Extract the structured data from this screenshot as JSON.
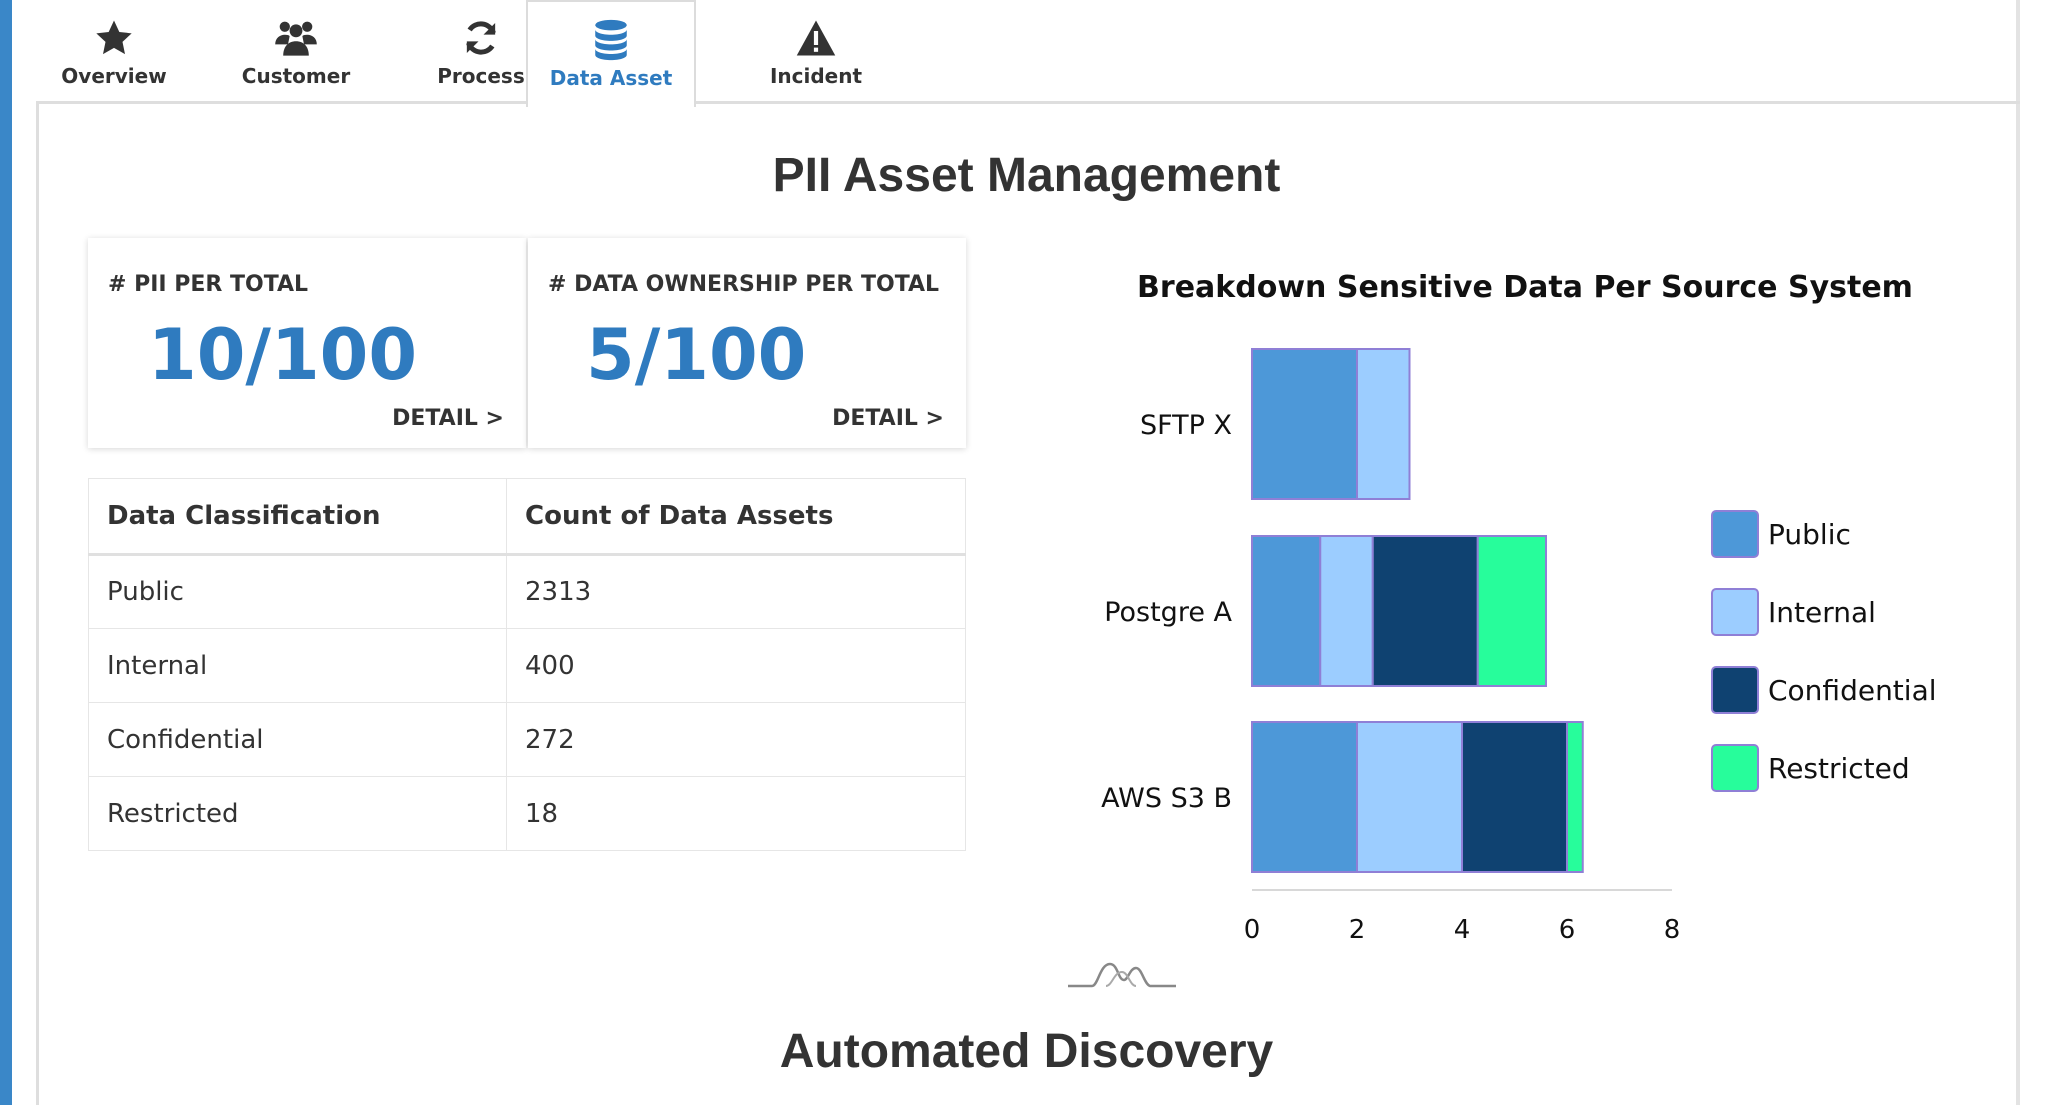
{
  "tabs": [
    {
      "label": "Overview",
      "icon": "star-icon",
      "active": false
    },
    {
      "label": "Customer",
      "icon": "users-icon",
      "active": false
    },
    {
      "label": "Process",
      "icon": "refresh-icon",
      "active": false
    },
    {
      "label": "Data Asset",
      "icon": "database-icon",
      "active": true
    },
    {
      "label": "Incident",
      "icon": "warning-icon",
      "active": false
    }
  ],
  "page_title": "PII Asset Management",
  "cards": [
    {
      "label": "# PII PER TOTAL",
      "value": "10/100",
      "detail": "DETAIL >"
    },
    {
      "label": "# DATA OWNERSHIP PER TOTAL",
      "value": "5/100",
      "detail": "DETAIL >"
    }
  ],
  "table": {
    "headers": [
      "Data Classification",
      "Count of Data Assets"
    ],
    "rows": [
      [
        "Public",
        "2313"
      ],
      [
        "Internal",
        "400"
      ],
      [
        "Confidential",
        "272"
      ],
      [
        "Restricted",
        "18"
      ]
    ]
  },
  "chart_data": {
    "type": "bar",
    "orientation": "horizontal",
    "stacked": true,
    "title": "Breakdown Sensitive Data Per Source System",
    "categories": [
      "SFTP X",
      "Postgre A",
      "AWS S3 B"
    ],
    "series": [
      {
        "name": "Public",
        "color": "#4d98d8",
        "values": [
          2,
          1.3,
          2
        ]
      },
      {
        "name": "Internal",
        "color": "#9ccdff",
        "values": [
          1,
          1,
          2
        ]
      },
      {
        "name": "Confidential",
        "color": "#0f4271",
        "values": [
          0,
          2,
          2
        ]
      },
      {
        "name": "Restricted",
        "color": "#27fd9b",
        "values": [
          0,
          1.3,
          0.3
        ]
      }
    ],
    "xlim": [
      0,
      8
    ],
    "xticks": [
      "0",
      "2",
      "4",
      "6",
      "8"
    ],
    "grid": false,
    "legend": "right"
  },
  "section_title": "Automated Discovery",
  "colors": {
    "accent": "#2f7bbf",
    "sidebar": "#3a87c8"
  }
}
